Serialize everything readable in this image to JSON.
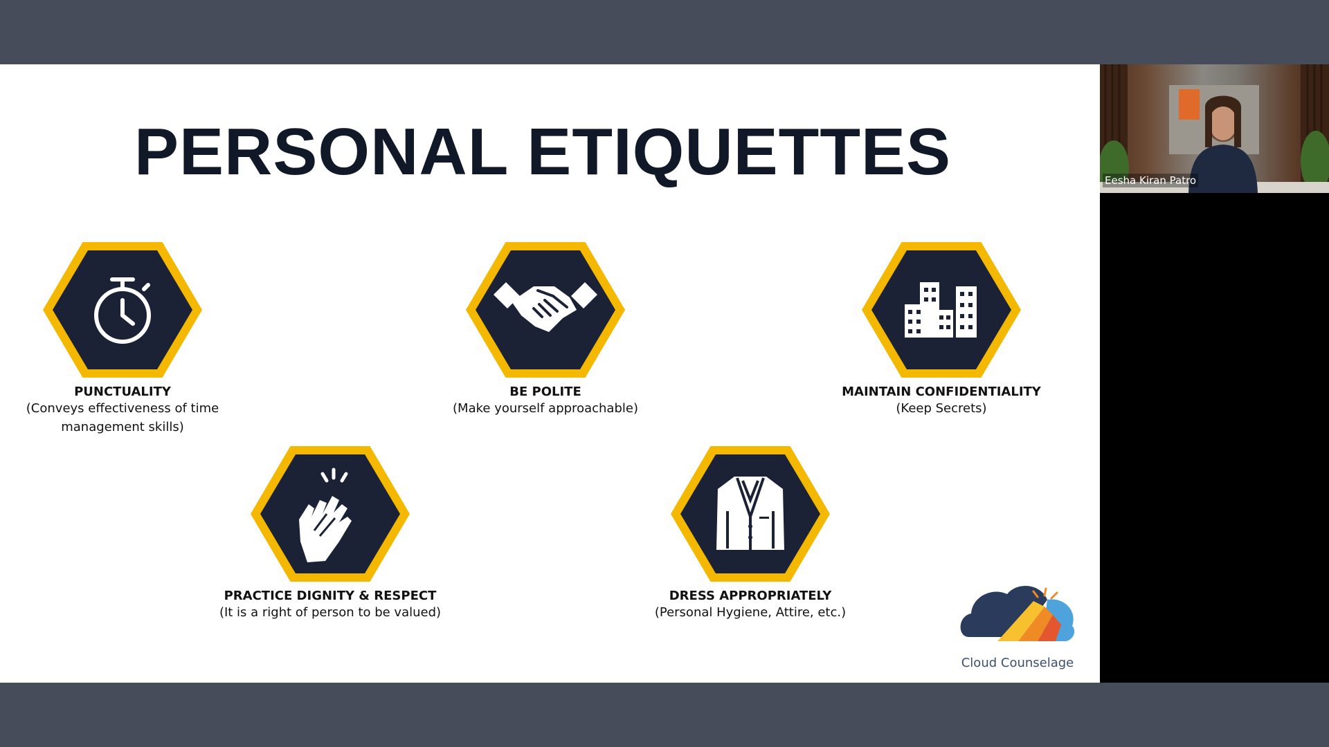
{
  "slide": {
    "title": "PERSONAL ETIQUETTES",
    "items": [
      {
        "title": "PUNCTUALITY",
        "desc": [
          "(Conveys effectiveness of time",
          "management skills)"
        ],
        "icon": "stopwatch-icon"
      },
      {
        "title": "BE POLITE",
        "desc": [
          "(Make yourself approachable)"
        ],
        "icon": "handshake-icon"
      },
      {
        "title": "MAINTAIN CONFIDENTIALITY",
        "desc": [
          "(Keep Secrets)"
        ],
        "icon": "buildings-icon"
      },
      {
        "title": "PRACTICE DIGNITY & RESPECT",
        "desc": [
          "(It is a right of person to be valued)"
        ],
        "icon": "clapping-hands-icon"
      },
      {
        "title": "DRESS APPROPRIATELY",
        "desc": [
          "(Personal Hygiene, Attire, etc.)"
        ],
        "icon": "blazer-icon"
      }
    ],
    "logo": {
      "text": "Cloud Counselage"
    }
  },
  "participant": {
    "name": "Eesha Kiran Patro"
  },
  "colors": {
    "hex_border": "#f5b800",
    "hex_fill": "#1b2236",
    "frame": "#464c5a"
  }
}
